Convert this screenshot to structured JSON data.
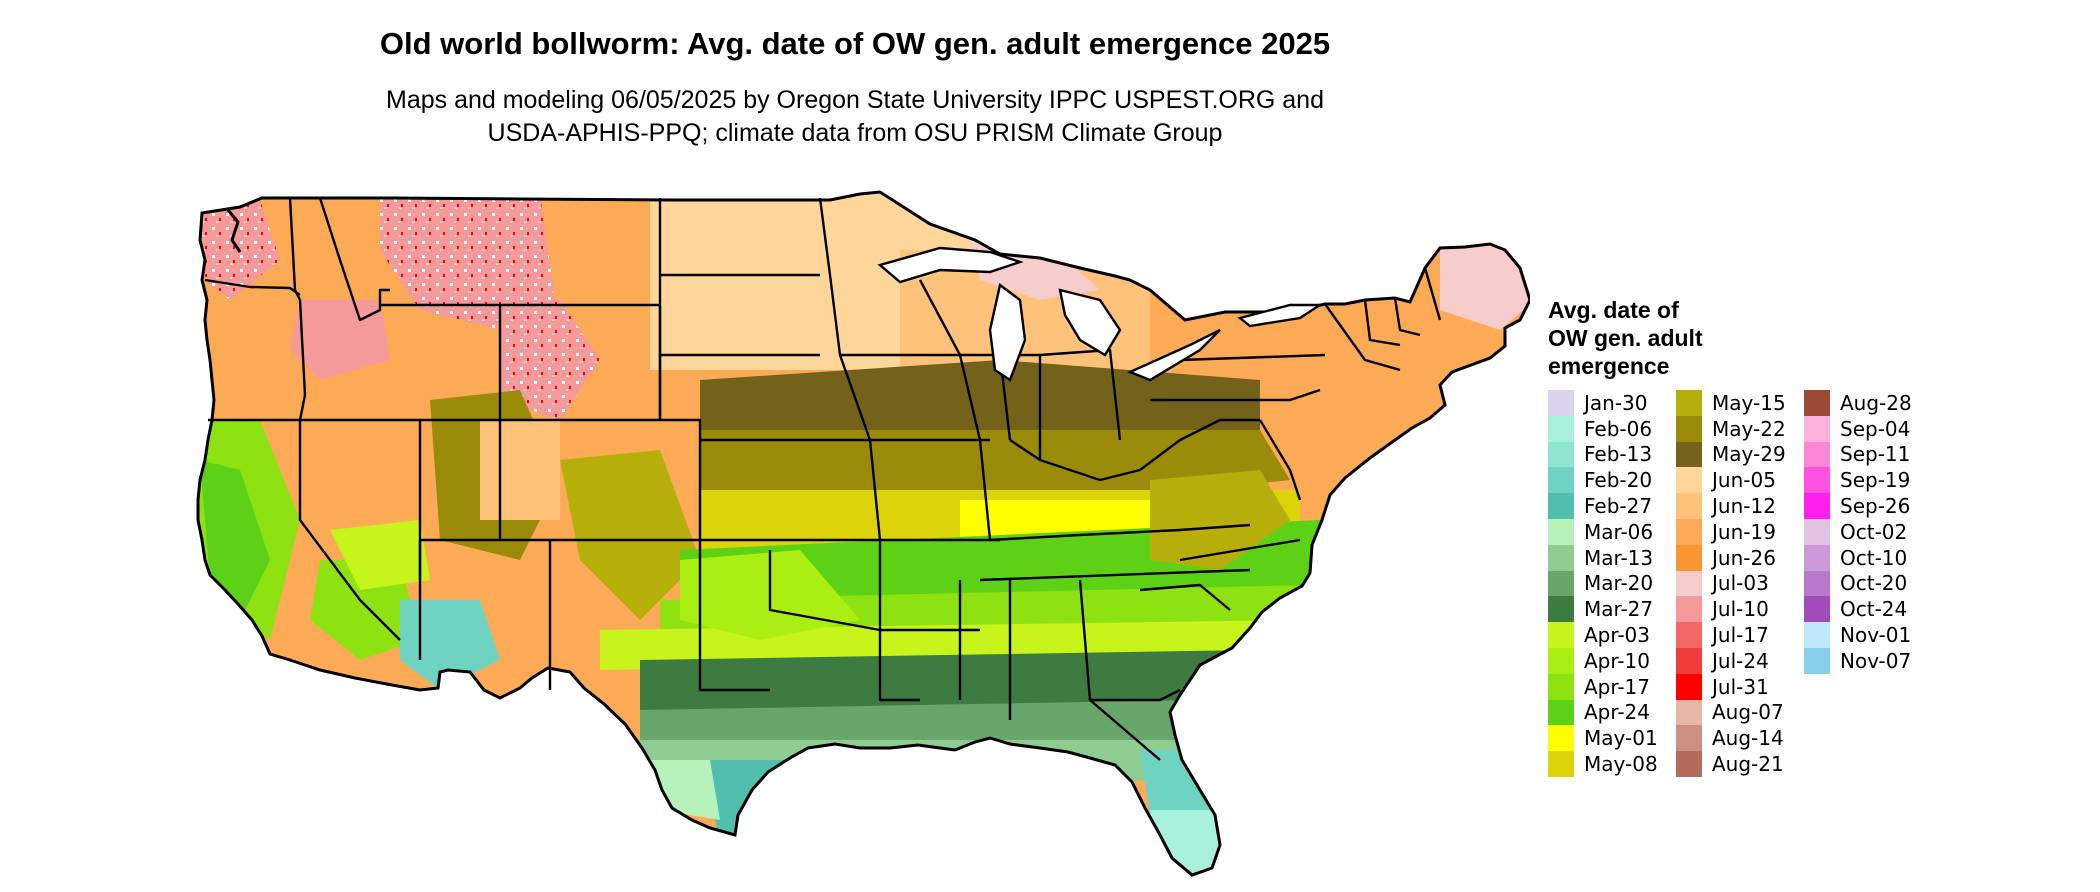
{
  "title": "Old world bollworm: Avg. date of OW gen. adult emergence 2025",
  "subtitle_line1": "Maps and modeling 06/05/2025 by Oregon State University IPPC USPEST.ORG and",
  "subtitle_line2": "USDA-APHIS-PPQ; climate data from OSU PRISM Climate Group",
  "legend": {
    "title_lines": [
      "Avg. date of",
      "OW gen. adult",
      "emergence"
    ],
    "columns": [
      [
        {
          "label": "Jan-30",
          "color": "#d9d3ee"
        },
        {
          "label": "Feb-06",
          "color": "#a8f2dc"
        },
        {
          "label": "Feb-13",
          "color": "#8fe3cf"
        },
        {
          "label": "Feb-20",
          "color": "#6fd3c1"
        },
        {
          "label": "Feb-27",
          "color": "#50bfae"
        },
        {
          "label": "Mar-06",
          "color": "#b6f2b9"
        },
        {
          "label": "Mar-13",
          "color": "#8fcc92"
        },
        {
          "label": "Mar-20",
          "color": "#69a66c"
        },
        {
          "label": "Mar-27",
          "color": "#3d7b40"
        },
        {
          "label": "Apr-03",
          "color": "#c7f41a"
        },
        {
          "label": "Apr-10",
          "color": "#abee14"
        },
        {
          "label": "Apr-17",
          "color": "#8ee212"
        },
        {
          "label": "Apr-24",
          "color": "#5cd115"
        },
        {
          "label": "May-01",
          "color": "#ffff00"
        },
        {
          "label": "May-08",
          "color": "#dcd30a"
        }
      ],
      [
        {
          "label": "May-15",
          "color": "#b6ae0a"
        },
        {
          "label": "May-22",
          "color": "#9a8c0a"
        },
        {
          "label": "May-29",
          "color": "#74611a"
        },
        {
          "label": "Jun-05",
          "color": "#ffd699"
        },
        {
          "label": "Jun-12",
          "color": "#ffc27a"
        },
        {
          "label": "Jun-19",
          "color": "#fdaa57"
        },
        {
          "label": "Jun-26",
          "color": "#fb9633"
        },
        {
          "label": "Jul-03",
          "color": "#f7cccc"
        },
        {
          "label": "Jul-10",
          "color": "#f59a9a"
        },
        {
          "label": "Jul-17",
          "color": "#f26666"
        },
        {
          "label": "Jul-24",
          "color": "#f23c3c"
        },
        {
          "label": "Jul-31",
          "color": "#ff0000"
        },
        {
          "label": "Aug-07",
          "color": "#e7b6a8"
        },
        {
          "label": "Aug-14",
          "color": "#cc8f83"
        },
        {
          "label": "Aug-21",
          "color": "#b36b5d"
        }
      ],
      [
        {
          "label": "Aug-28",
          "color": "#9a4a35"
        },
        {
          "label": "Sep-04",
          "color": "#ffb3dc"
        },
        {
          "label": "Sep-11",
          "color": "#ff85d6"
        },
        {
          "label": "Sep-19",
          "color": "#ff52e2"
        },
        {
          "label": "Sep-26",
          "color": "#ff20f0"
        },
        {
          "label": "Oct-02",
          "color": "#e4c2e4"
        },
        {
          "label": "Oct-10",
          "color": "#cc9ad8"
        },
        {
          "label": "Oct-20",
          "color": "#b878cc"
        },
        {
          "label": "Oct-24",
          "color": "#a24cb9"
        },
        {
          "label": "Nov-01",
          "color": "#bde9fb"
        },
        {
          "label": "Nov-07",
          "color": "#86d0ec"
        }
      ]
    ]
  }
}
